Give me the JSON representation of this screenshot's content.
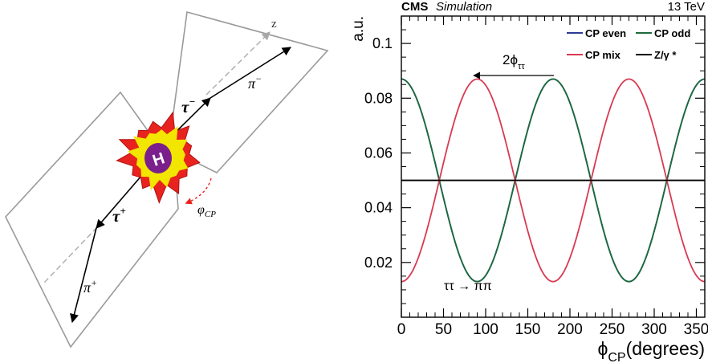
{
  "diagram": {
    "z_label": "z",
    "tau_minus_label": "τ",
    "tau_minus_sup": "−",
    "pi_minus_label": "π",
    "pi_minus_sup": "−",
    "tau_plus_label": "τ",
    "tau_plus_sup": "+",
    "pi_plus_label": "π",
    "pi_plus_sup": "+",
    "higgs_label": "H",
    "phi_label": "φ",
    "phi_sub": "CP",
    "colors": {
      "plane": "#9a9a9a",
      "burst_outer": "#e8231f",
      "burst_inner": "#f2e600",
      "higgs": "#7b1f8c",
      "phi_arrow": "#e8231f"
    }
  },
  "chart_header": {
    "experiment": "CMS",
    "status": "Simulation",
    "energy": "13 TeV",
    "shift_label": "2ϕ",
    "shift_sub": "ττ",
    "channel": "ττ → ππ"
  },
  "chart_data": {
    "type": "line",
    "xlabel": "ϕ",
    "xlabel_sub": "CP",
    "xlabel_unit": "(degrees)",
    "ylabel": "a.u.",
    "xlim": [
      0,
      360
    ],
    "ylim": [
      0.0,
      0.11
    ],
    "x_ticks": [
      0,
      50,
      100,
      150,
      200,
      250,
      300,
      350
    ],
    "x_tick_labels": [
      "0",
      "50",
      "100",
      "150",
      "200",
      "250",
      "300",
      "350"
    ],
    "y_ticks": [
      0.02,
      0.04,
      0.06,
      0.08,
      0.1
    ],
    "y_tick_labels": [
      "0.02",
      "0.04",
      "0.06",
      "0.08",
      "0.1"
    ],
    "grid": false,
    "legend_position": "top-right",
    "series": [
      {
        "name": "CP even",
        "color": "#2b3a97",
        "mean": 0.05,
        "amplitude": 0.037,
        "peak_deg": 180
      },
      {
        "name": "CP odd",
        "color": "#1c6b3c",
        "mean": 0.05,
        "amplitude": 0.037,
        "peak_deg": 0
      },
      {
        "name": "CP mix",
        "color": "#d83a52",
        "mean": 0.05,
        "amplitude": 0.037,
        "peak_deg": 90
      },
      {
        "name": "Z/γ *",
        "color": "#000000",
        "mean": 0.05,
        "amplitude": 0.0,
        "peak_deg": 0
      }
    ]
  }
}
